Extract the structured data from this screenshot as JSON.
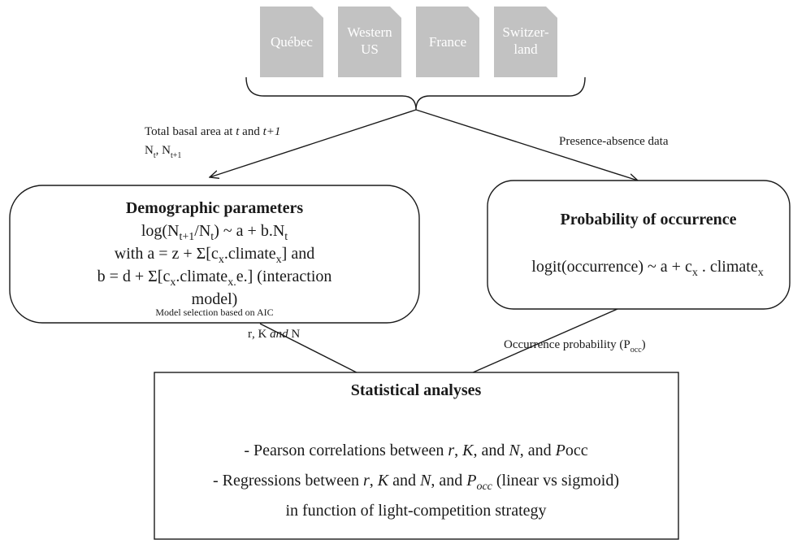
{
  "documents": [
    {
      "lines": [
        "Québec"
      ]
    },
    {
      "lines": [
        "Western",
        "US"
      ]
    },
    {
      "lines": [
        "France"
      ]
    },
    {
      "lines": [
        "Switzer-",
        "land"
      ]
    }
  ],
  "edge_labels": {
    "basal_area": {
      "line1": [
        "Total basal area at ",
        "t",
        " and ",
        "t+1"
      ],
      "line2": [
        "N",
        "t",
        ", N",
        "t+1"
      ]
    },
    "presence": [
      "Presence-absence data"
    ],
    "rkn": [
      "r",
      ", ",
      "K",
      " and ",
      "N"
    ],
    "occurrence": [
      "Occurrence probability (P",
      "occ",
      ")"
    ]
  },
  "nodes": {
    "demographic": {
      "title": [
        "Demographic parameters"
      ],
      "lines": [
        [
          "log(N",
          "t+1",
          "/N",
          "t",
          ") ~ a + b.N",
          "t"
        ],
        [
          "with a = z + Σ[c",
          "x",
          ".climate",
          "x",
          "] and"
        ],
        [
          "b = d + Σ[c",
          "x",
          ".climate",
          "x.",
          "e.]  (interaction"
        ],
        [
          "model)"
        ]
      ],
      "note": [
        "Model selection based on AIC"
      ]
    },
    "probability": {
      "title": [
        "Probability of occurrence"
      ],
      "lines": [
        [
          "logit(occurrence) ~ a + c",
          "x",
          " . climate",
          "x"
        ]
      ]
    },
    "statistical": {
      "title": [
        "Statistical analyses"
      ],
      "lines": [
        [
          "-   Pearson correlations between ",
          "r",
          ", ",
          "K",
          ", and ",
          "N",
          ", and ",
          "P",
          "occ"
        ],
        [
          "-   Regressions between ",
          "r",
          ", ",
          "K",
          " and ",
          "N",
          ", and ",
          "P",
          "occ",
          " (linear vs sigmoid)"
        ],
        [
          "in function of light-competition strategy"
        ]
      ]
    }
  }
}
